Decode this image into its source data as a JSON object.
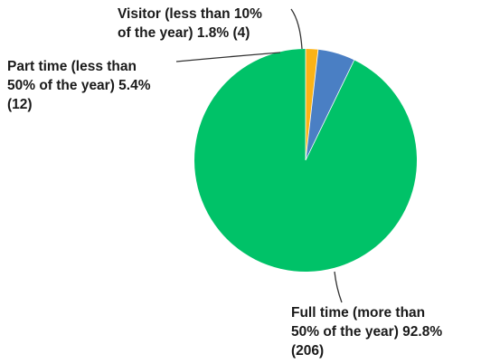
{
  "chart_data": {
    "type": "pie",
    "title": "",
    "slices": [
      {
        "name": "Full time",
        "value": 92.8,
        "count": 206,
        "color": "#00c268",
        "label_lines": [
          "Full time (more than",
          "50% of the year) 92.8%",
          "(206)"
        ]
      },
      {
        "name": "Part time",
        "value": 5.4,
        "count": 12,
        "color": "#4a7fc4",
        "label_lines": [
          "Part time (less than",
          "50% of the year) 5.4%",
          "(12)"
        ]
      },
      {
        "name": "Visitor",
        "value": 1.8,
        "count": 4,
        "color": "#fbb317",
        "label_lines": [
          "Visitor (less than 10%",
          "of the year) 1.8% (4)"
        ]
      }
    ],
    "start_angle_deg": 0,
    "direction": "counterclockwise",
    "legend": "none",
    "grid": false
  }
}
